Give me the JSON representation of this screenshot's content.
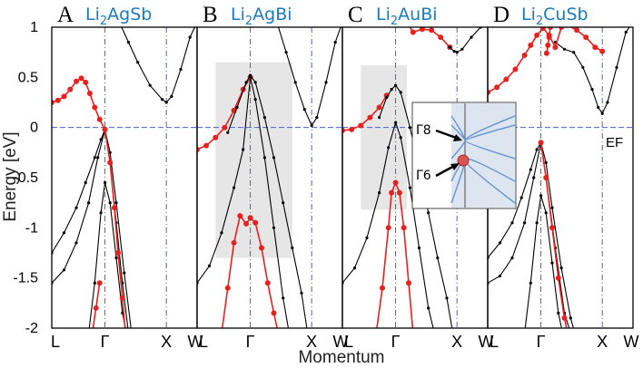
{
  "chart_data": {
    "type": "line",
    "xlabel": "Momentum",
    "ylabel": "Energy [eV]",
    "ylim": [
      -2,
      1
    ],
    "yticks": [
      1,
      0.5,
      0,
      -0.5,
      -1,
      -1.5,
      -2
    ],
    "ytick_labels": [
      "1",
      "0.5",
      "0",
      "-0.5",
      "-1",
      "-1.5",
      "-2"
    ],
    "fermi_level_label": "EF",
    "k_path": [
      "L",
      "Γ",
      "X",
      "W"
    ],
    "k_positions": [
      0,
      0.866,
      1.866,
      2.366
    ],
    "colors": {
      "bulk": "#000000",
      "surface": "#e8201e",
      "title": "#1a7bc1",
      "guide": "#4a5fd8",
      "shade": "#e6e6e6"
    },
    "inset": {
      "labels": [
        "Γ8",
        "Γ6"
      ]
    },
    "panels": [
      {
        "letter": "A",
        "compound": "Li2AgSb",
        "compound_parts": [
          "Li",
          "2",
          "AgSb"
        ],
        "bands": [
          {
            "role": "conduction",
            "x": [
              1.1,
              1.25,
              1.4,
              1.6,
              1.8,
              1.866,
              1.95,
              2.1,
              2.25,
              2.366
            ],
            "y": [
              1.05,
              0.85,
              0.65,
              0.42,
              0.28,
              0.25,
              0.31,
              0.58,
              0.9,
              1.05
            ]
          },
          {
            "role": "surface",
            "x": [
              0,
              0.1,
              0.2,
              0.3,
              0.4,
              0.48,
              0.55,
              0.62,
              0.7,
              0.78,
              0.866
            ],
            "y": [
              0.25,
              0.27,
              0.31,
              0.38,
              0.46,
              0.49,
              0.45,
              0.34,
              0.2,
              0.08,
              -0.02
            ]
          },
          {
            "role": "valence-light",
            "x": [
              0,
              0.2,
              0.4,
              0.55,
              0.7,
              0.8,
              0.866,
              0.95,
              1.05,
              1.18,
              1.3
            ],
            "y": [
              -1.25,
              -1.05,
              -0.8,
              -0.55,
              -0.3,
              -0.12,
              -0.02,
              -0.25,
              -0.75,
              -1.45,
              -2.05
            ]
          },
          {
            "role": "valence-heavy",
            "x": [
              0,
              0.2,
              0.4,
              0.6,
              0.75,
              0.866,
              0.95,
              1.05,
              1.15,
              1.25
            ],
            "y": [
              -1.55,
              -1.42,
              -1.15,
              -0.75,
              -0.3,
              -0.02,
              -0.35,
              -0.95,
              -1.55,
              -2.05
            ]
          },
          {
            "role": "deep",
            "x": [
              0.6,
              0.7,
              0.8,
              0.866,
              0.95,
              1.05,
              1.15,
              1.22
            ],
            "y": [
              -2.05,
              -1.55,
              -0.85,
              -0.55,
              -0.75,
              -1.3,
              -1.85,
              -2.05
            ]
          },
          {
            "role": "surface",
            "x": [
              0.866,
              0.95,
              1.02,
              1.08,
              1.15,
              1.2
            ],
            "y": [
              -0.02,
              -0.35,
              -0.8,
              -1.25,
              -1.7,
              -2.05
            ]
          },
          {
            "role": "surface",
            "x": [
              0.66,
              0.72,
              0.78
            ],
            "y": [
              -2.05,
              -1.8,
              -1.55
            ]
          }
        ]
      },
      {
        "letter": "B",
        "compound": "Li2AgBi",
        "compound_parts": [
          "Li",
          "2",
          "AgBi"
        ],
        "shade": {
          "x": [
            0.3,
            1.55
          ],
          "y": [
            -1.3,
            0.65
          ]
        },
        "bands": [
          {
            "role": "conduction",
            "x": [
              1.3,
              1.45,
              1.6,
              1.75,
              1.866,
              1.95,
              2.1,
              2.25,
              2.366
            ],
            "y": [
              1.05,
              0.75,
              0.45,
              0.18,
              0.02,
              0.1,
              0.45,
              0.85,
              1.05
            ]
          },
          {
            "role": "surface",
            "x": [
              0,
              0.15,
              0.3,
              0.45,
              0.6,
              0.75,
              0.866
            ],
            "y": [
              -0.22,
              -0.18,
              -0.1,
              0.0,
              0.17,
              0.38,
              0.5
            ]
          },
          {
            "role": "valence-light",
            "x": [
              0.5,
              0.65,
              0.8,
              0.866,
              0.95,
              1.1,
              1.25,
              1.4,
              1.55,
              1.7,
              1.8
            ],
            "y": [
              -0.05,
              0.2,
              0.45,
              0.52,
              0.45,
              0.1,
              -0.3,
              -0.75,
              -1.2,
              -1.65,
              -2.05
            ]
          },
          {
            "role": "valence-heavy",
            "x": [
              0,
              0.2,
              0.4,
              0.6,
              0.75,
              0.866,
              0.95,
              1.1,
              1.25,
              1.4,
              1.5
            ],
            "y": [
              -1.55,
              -1.38,
              -1.05,
              -0.6,
              -0.22,
              0.5,
              0.28,
              -0.3,
              -1.0,
              -1.7,
              -2.05
            ]
          },
          {
            "role": "surface",
            "x": [
              0.4,
              0.5,
              0.6,
              0.7,
              0.8,
              0.866,
              0.95,
              1.05,
              1.15,
              1.25,
              1.32
            ],
            "y": [
              -2.05,
              -1.6,
              -1.15,
              -0.88,
              -0.96,
              -0.9,
              -0.95,
              -1.2,
              -1.55,
              -1.85,
              -2.05
            ]
          }
        ]
      },
      {
        "letter": "C",
        "compound": "Li2AuBi",
        "compound_parts": [
          "Li",
          "2",
          "AuBi"
        ],
        "shade": {
          "x": [
            0.3,
            1.05
          ],
          "y": [
            -0.82,
            0.62
          ]
        },
        "bands": [
          {
            "role": "surface",
            "x": [
              1.05,
              1.15,
              1.3,
              1.45,
              1.6,
              1.75
            ],
            "y": [
              1.05,
              0.95,
              0.98,
              0.97,
              0.9,
              0.8
            ]
          },
          {
            "role": "conduction",
            "x": [
              1.75,
              1.82,
              1.866,
              1.95,
              2.1,
              2.25,
              2.366
            ],
            "y": [
              0.8,
              0.76,
              0.75,
              0.78,
              0.9,
              1.0,
              1.05
            ]
          },
          {
            "role": "surface",
            "x": [
              0,
              0.15,
              0.3,
              0.45,
              0.6,
              0.72
            ],
            "y": [
              -0.03,
              -0.02,
              0.02,
              0.1,
              0.2,
              0.32
            ]
          },
          {
            "role": "valence-light",
            "x": [
              0.6,
              0.72,
              0.8,
              0.866,
              0.95,
              1.1,
              1.25,
              1.4,
              1.55,
              1.7,
              1.8
            ],
            "y": [
              0.1,
              0.3,
              0.38,
              0.42,
              0.35,
              0.0,
              -0.4,
              -0.85,
              -1.3,
              -1.7,
              -2.05
            ]
          },
          {
            "role": "valence-heavy",
            "x": [
              0,
              0.2,
              0.4,
              0.6,
              0.75,
              0.866,
              0.95,
              1.1,
              1.25,
              1.4,
              1.5
            ],
            "y": [
              -1.55,
              -1.4,
              -1.1,
              -0.65,
              -0.2,
              0.05,
              -0.1,
              -0.6,
              -1.2,
              -1.8,
              -2.05
            ]
          },
          {
            "role": "surface",
            "x": [
              0.55,
              0.65,
              0.75,
              0.8,
              0.866,
              0.93,
              1.0,
              1.08,
              1.15
            ],
            "y": [
              -2.05,
              -1.6,
              -1.0,
              -0.65,
              -0.55,
              -0.65,
              -1.0,
              -1.55,
              -2.05
            ]
          }
        ]
      },
      {
        "letter": "D",
        "compound": "Li2CuSb",
        "compound_parts": [
          "Li",
          "2",
          "CuSb"
        ],
        "bands": [
          {
            "role": "conduction",
            "x": [
              1.1,
              1.25,
              1.4,
              1.55,
              1.7,
              1.8,
              1.866,
              1.95,
              2.1,
              2.25,
              2.366
            ],
            "y": [
              0.85,
              0.78,
              0.75,
              0.6,
              0.38,
              0.2,
              0.14,
              0.25,
              0.6,
              0.95,
              1.05
            ]
          },
          {
            "role": "surface",
            "x": [
              0,
              0.15,
              0.3,
              0.45,
              0.6,
              0.7,
              0.8,
              0.9,
              1.0,
              1.1,
              1.2,
              1.3,
              1.45,
              1.6,
              1.75,
              1.866
            ],
            "y": [
              0.35,
              0.4,
              0.48,
              0.58,
              0.72,
              0.82,
              0.92,
              0.99,
              0.92,
              0.8,
              1.0,
              1.02,
              0.97,
              0.9,
              0.8,
              0.76
            ]
          },
          {
            "role": "surface",
            "x": [
              0.96,
              0.98,
              1.0,
              1.02
            ],
            "y": [
              0.74,
              0.82,
              0.9,
              1.0
            ]
          },
          {
            "role": "valence-light",
            "x": [
              0,
              0.2,
              0.4,
              0.55,
              0.7,
              0.8,
              0.866,
              0.95,
              1.05,
              1.2,
              1.35,
              1.42
            ],
            "y": [
              -1.3,
              -1.15,
              -0.95,
              -0.7,
              -0.42,
              -0.22,
              -0.15,
              -0.35,
              -0.8,
              -1.4,
              -1.9,
              -2.05
            ]
          },
          {
            "role": "valence-heavy",
            "x": [
              0,
              0.2,
              0.4,
              0.6,
              0.75,
              0.866,
              0.95,
              1.1,
              1.25,
              1.35
            ],
            "y": [
              -1.55,
              -1.48,
              -1.3,
              -0.95,
              -0.5,
              -0.15,
              -0.5,
              -1.2,
              -1.85,
              -2.05
            ]
          },
          {
            "role": "deep",
            "x": [
              0.6,
              0.7,
              0.8,
              0.866,
              0.95,
              1.05,
              1.15,
              1.22
            ],
            "y": [
              -2.05,
              -1.55,
              -0.95,
              -0.68,
              -0.85,
              -1.35,
              -1.85,
              -2.05
            ]
          },
          {
            "role": "surface",
            "x": [
              0.866,
              0.95,
              1.05,
              1.15,
              1.25,
              1.3
            ],
            "y": [
              -0.15,
              -0.5,
              -1.0,
              -1.5,
              -1.9,
              -2.05
            ]
          }
        ]
      }
    ]
  }
}
